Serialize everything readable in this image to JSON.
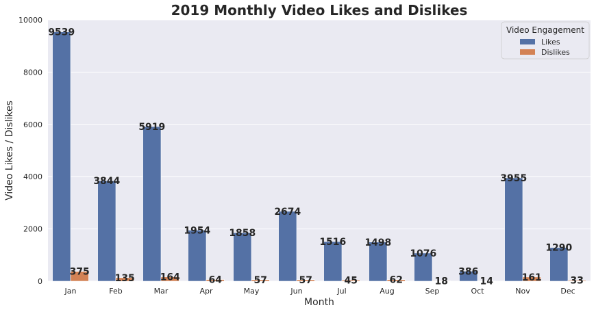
{
  "chart_data": {
    "type": "bar",
    "title": "2019 Monthly Video Likes and Dislikes",
    "xlabel": "Month",
    "ylabel": "Video Likes / Dislikes",
    "categories": [
      "Jan",
      "Feb",
      "Mar",
      "Apr",
      "May",
      "Jun",
      "Jul",
      "Aug",
      "Sep",
      "Oct",
      "Nov",
      "Dec"
    ],
    "series": [
      {
        "name": "Likes",
        "values": [
          9539,
          3844,
          5919,
          1954,
          1858,
          2674,
          1516,
          1498,
          1076,
          386,
          3955,
          1290
        ],
        "color": "#5471a5"
      },
      {
        "name": "Dislikes",
        "values": [
          375,
          135,
          164,
          64,
          57,
          57,
          45,
          62,
          18,
          14,
          161,
          33
        ],
        "color": "#d38255"
      }
    ],
    "ylim": [
      0,
      10000
    ],
    "yticks": [
      0,
      2000,
      4000,
      6000,
      8000,
      10000
    ],
    "grid": true,
    "background": "#eaeaf2",
    "legend": {
      "title": "Video Engagement",
      "position": "top-right"
    }
  }
}
